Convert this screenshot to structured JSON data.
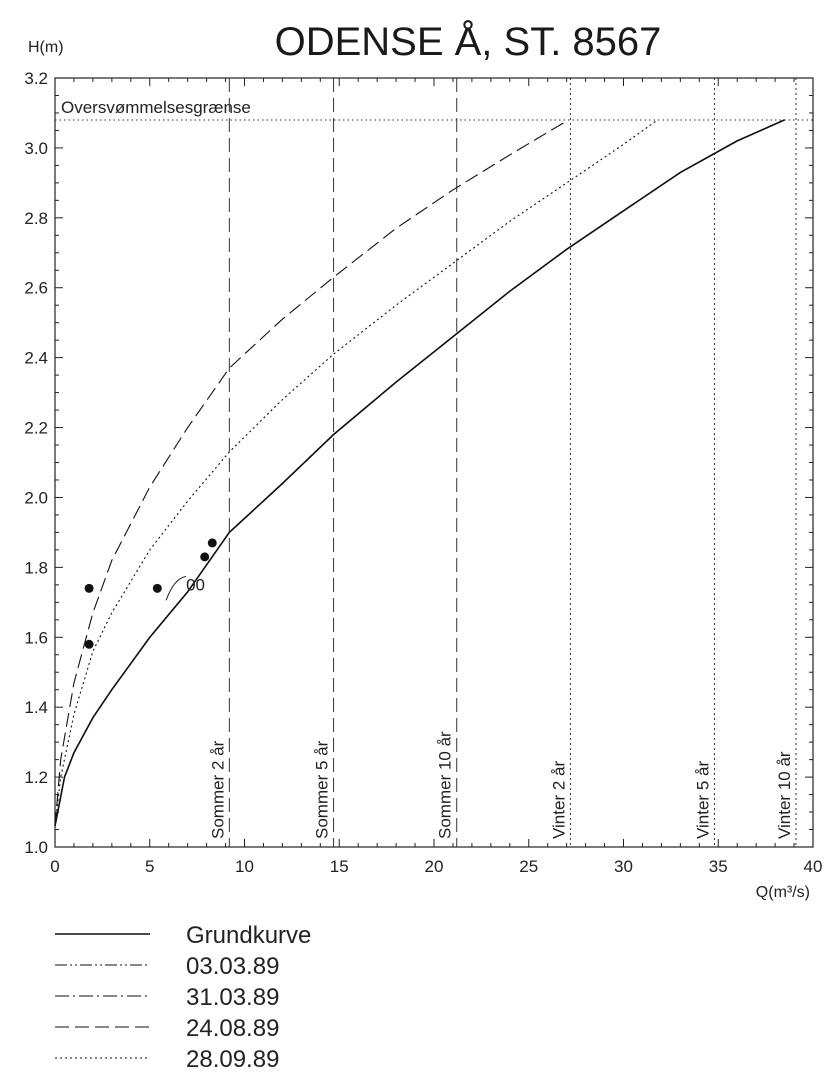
{
  "chart_data": {
    "type": "line",
    "title": "ODENSE Å, ST. 8567",
    "ylabel": "H(m)",
    "xlabel": "Q(m³/s)",
    "xlim": [
      0,
      40
    ],
    "ylim": [
      1.0,
      3.2
    ],
    "x_ticks": [
      0,
      5,
      10,
      15,
      20,
      25,
      30,
      35,
      40
    ],
    "y_ticks": [
      1.0,
      1.2,
      1.4,
      1.6,
      1.8,
      2.0,
      2.2,
      2.4,
      2.6,
      2.8,
      3.0,
      3.2
    ],
    "x_tick_labels": [
      "0",
      "5",
      "10",
      "15",
      "20",
      "25",
      "30",
      "35",
      "40"
    ],
    "y_tick_labels": [
      "1.0",
      "1.2",
      "1.4",
      "1.6",
      "1.8",
      "2.0",
      "2.2",
      "2.4",
      "2.6",
      "2.8",
      "3.0",
      "3.2"
    ],
    "flood_limit": {
      "label": "Oversvømmelsesgrænse",
      "h": 3.08
    },
    "series": [
      {
        "name": "Grundkurve",
        "style": "solid",
        "x": [
          0,
          0.5,
          1,
          2,
          3,
          5,
          7,
          9.2,
          12,
          14.7,
          18,
          21,
          24,
          27,
          30,
          33,
          36,
          38.5
        ],
        "y": [
          1.06,
          1.2,
          1.27,
          1.37,
          1.45,
          1.6,
          1.73,
          1.9,
          2.04,
          2.18,
          2.33,
          2.46,
          2.59,
          2.71,
          2.82,
          2.93,
          3.02,
          3.08
        ]
      },
      {
        "name": "03.03.89",
        "style": "dashdotdot",
        "x": [
          0,
          0.5,
          1,
          2,
          3,
          5,
          7,
          9.2,
          12,
          14.7,
          18,
          21,
          24,
          27,
          30,
          33,
          36,
          38.5
        ],
        "y": [
          1.06,
          1.2,
          1.27,
          1.37,
          1.45,
          1.6,
          1.73,
          1.9,
          2.04,
          2.18,
          2.33,
          2.46,
          2.59,
          2.71,
          2.82,
          2.93,
          3.02,
          3.08
        ]
      },
      {
        "name": "31.03.89",
        "style": "dashdot",
        "x": [
          0,
          0.5,
          1,
          2,
          3,
          5,
          7,
          9.2,
          12,
          14.7,
          18,
          21,
          24,
          27,
          30,
          33,
          36,
          38.5
        ],
        "y": [
          1.06,
          1.2,
          1.27,
          1.37,
          1.45,
          1.6,
          1.73,
          1.9,
          2.04,
          2.18,
          2.33,
          2.46,
          2.59,
          2.71,
          2.82,
          2.93,
          3.02,
          3.08
        ]
      },
      {
        "name": "24.08.89",
        "style": "dashed",
        "x": [
          0,
          0.3,
          1,
          2,
          3,
          5,
          7,
          9.2,
          12,
          14.7,
          18,
          21,
          24,
          27.1
        ],
        "y": [
          1.06,
          1.25,
          1.47,
          1.67,
          1.82,
          2.03,
          2.2,
          2.37,
          2.51,
          2.63,
          2.77,
          2.88,
          2.98,
          3.08
        ]
      },
      {
        "name": "28.09.89",
        "style": "dotted",
        "x": [
          0,
          0.3,
          1,
          2,
          3,
          5,
          7,
          9.2,
          12,
          14.7,
          18,
          21,
          24,
          27,
          30,
          31.8
        ],
        "y": [
          1.06,
          1.2,
          1.38,
          1.56,
          1.67,
          1.85,
          1.99,
          2.13,
          2.28,
          2.41,
          2.55,
          2.67,
          2.79,
          2.9,
          3.01,
          3.08
        ]
      }
    ],
    "measurements": [
      {
        "x": 1.8,
        "y": 1.74
      },
      {
        "x": 1.8,
        "y": 1.58
      },
      {
        "x": 5.4,
        "y": 1.74
      },
      {
        "x": 7.9,
        "y": 1.83
      },
      {
        "x": 8.3,
        "y": 1.87
      }
    ],
    "point_annotation": {
      "text": "00",
      "x": 6.6,
      "y": 1.74
    },
    "reference_lines": [
      {
        "label": "Sommer 2 år",
        "q": 9.2,
        "style": "dashed"
      },
      {
        "label": "Sommer 5 år",
        "q": 14.7,
        "style": "dashed"
      },
      {
        "label": "Sommer 10 år",
        "q": 21.2,
        "style": "dashed"
      },
      {
        "label": "Vinter 2 år",
        "q": 27.2,
        "style": "dotted"
      },
      {
        "label": "Vinter 5 år",
        "q": 34.8,
        "style": "dotted"
      },
      {
        "label": "Vinter 10 år",
        "q": 39.1,
        "style": "dotted"
      }
    ],
    "legend_position": "bottom-left",
    "grid": false
  }
}
